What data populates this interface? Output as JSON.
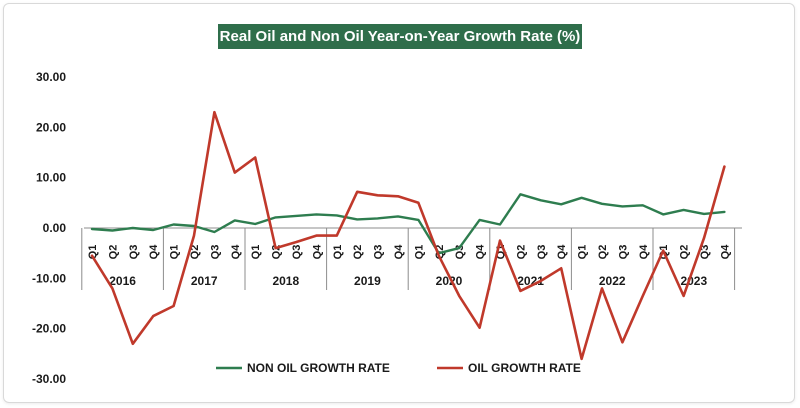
{
  "chart_data": {
    "type": "line",
    "title": "Real Oil and Non Oil Year-on-Year Growth Rate (%)",
    "ylim": [
      -30,
      30
    ],
    "y_ticks": [
      "30.00",
      "20.00",
      "10.00",
      "0.00",
      "-10.00",
      "-20.00",
      "-30.00"
    ],
    "y_tick_values": [
      30,
      20,
      10,
      0,
      -10,
      -20,
      -30
    ],
    "quarter_labels": [
      "Q1",
      "Q2",
      "Q3",
      "Q4",
      "Q1",
      "Q2",
      "Q3",
      "Q4",
      "Q1",
      "Q2",
      "Q3",
      "Q4",
      "Q1",
      "Q2",
      "Q3",
      "Q4",
      "Q1",
      "Q2",
      "Q3",
      "Q4",
      "Q1",
      "Q2",
      "Q3",
      "Q4",
      "Q1",
      "Q2",
      "Q3",
      "Q4",
      "Q1",
      "Q2",
      "Q3",
      "Q4"
    ],
    "years": [
      "2016",
      "2017",
      "2018",
      "2019",
      "2020",
      "2021",
      "2022",
      "2023"
    ],
    "grid": false,
    "legend_position": "bottom",
    "series": [
      {
        "name": "NON OIL GROWTH RATE",
        "color": "#2e7d4f",
        "values": [
          -0.2,
          -0.5,
          0.0,
          -0.4,
          0.7,
          0.4,
          -0.8,
          1.5,
          0.8,
          2.1,
          2.4,
          2.7,
          2.5,
          1.7,
          1.9,
          2.3,
          1.6,
          -5.0,
          -4.0,
          1.6,
          0.7,
          6.7,
          5.5,
          4.7,
          6.0,
          4.8,
          4.3,
          4.5,
          2.7,
          3.6,
          2.8,
          3.2
        ]
      },
      {
        "name": "OIL GROWTH RATE",
        "color": "#c0392b",
        "values": [
          -5.5,
          -12.0,
          -23.0,
          -17.5,
          -15.5,
          -1.5,
          23.0,
          11.0,
          14.0,
          -4.0,
          -2.8,
          -1.5,
          -1.5,
          7.2,
          6.5,
          6.3,
          5.0,
          -5.5,
          -13.5,
          -19.8,
          -2.5,
          -12.5,
          -10.5,
          -8.0,
          -26.0,
          -12.0,
          -22.7,
          -13.5,
          -4.5,
          -13.5,
          -2.0,
          12.2
        ]
      }
    ]
  }
}
